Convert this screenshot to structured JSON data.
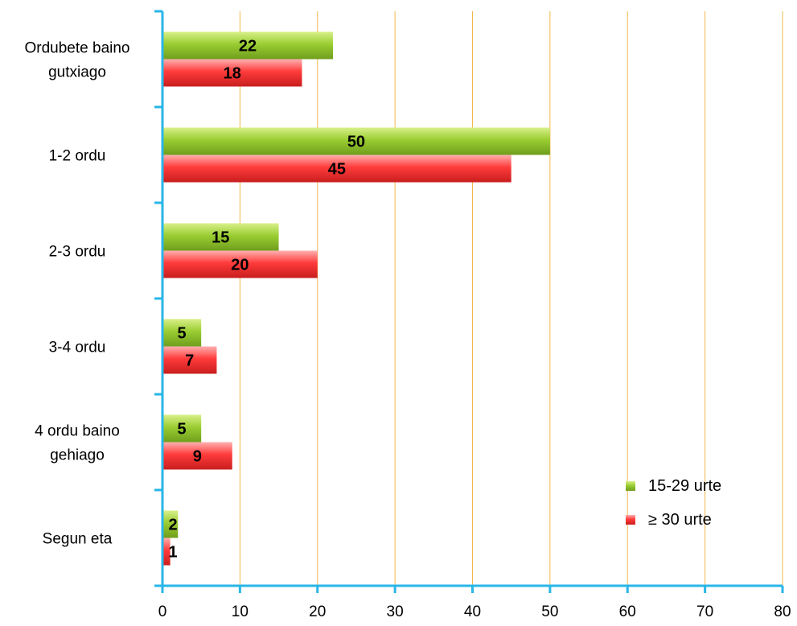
{
  "chart_data": {
    "type": "bar",
    "orientation": "horizontal",
    "title": "",
    "xlabel": "",
    "ylabel": "",
    "xlim": [
      0,
      80
    ],
    "x_ticks": [
      0,
      10,
      20,
      30,
      40,
      50,
      60,
      70,
      80
    ],
    "grid": "vertical",
    "legend_position": "bottom-right",
    "categories": [
      [
        "Ordubete baino",
        "gutxiago"
      ],
      [
        "1-2 ordu"
      ],
      [
        "2-3 ordu"
      ],
      [
        "3-4 ordu"
      ],
      [
        "4 ordu baino",
        "gehiago"
      ],
      [
        "Segun eta"
      ]
    ],
    "series": [
      {
        "name": "15-29 urte",
        "color": "#9acd32",
        "values": [
          22,
          50,
          15,
          5,
          5,
          2
        ]
      },
      {
        "name": "≥ 30 urte",
        "color": "#ff3b3b",
        "values": [
          18,
          45,
          20,
          7,
          9,
          1
        ]
      }
    ],
    "colors": {
      "axis": "#29b6e8",
      "grid": "#f2b84b"
    }
  }
}
